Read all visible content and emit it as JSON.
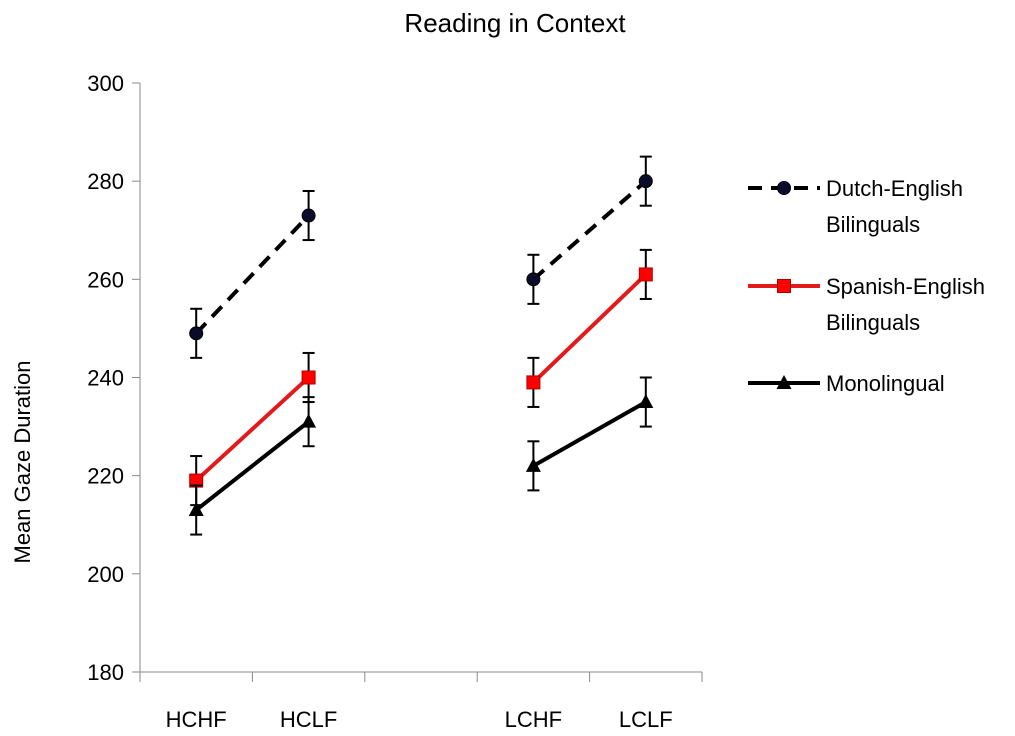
{
  "chart_data": {
    "type": "line",
    "title": "Reading in Context",
    "ylabel": "Mean Gaze Duration",
    "xlabel": "",
    "ylim": [
      180,
      300
    ],
    "yticks": [
      180,
      200,
      220,
      240,
      260,
      280,
      300
    ],
    "categories": [
      "HCHF",
      "HCLF",
      "",
      "LCHF",
      "LCLF"
    ],
    "grid": false,
    "legend": "right",
    "series": [
      {
        "name": "Dutch-English Bilinguals",
        "legend_lines": [
          "Dutch-English",
          "Bilinguals"
        ],
        "color": "#000000",
        "line_style": "dashed",
        "marker": "circle",
        "marker_color": "#0b0b2a",
        "points": [
          {
            "category": "HCHF",
            "y": 249,
            "err": 5
          },
          {
            "category": "HCLF",
            "y": 273,
            "err": 5
          },
          {
            "category": "LCHF",
            "y": 260,
            "err": 5
          },
          {
            "category": "LCLF",
            "y": 280,
            "err": 5
          }
        ]
      },
      {
        "name": "Spanish-English Bilinguals",
        "legend_lines": [
          "Spanish-English",
          "Bilinguals"
        ],
        "color": "#e31a1c",
        "line_style": "solid",
        "marker": "square",
        "marker_color": "#ff0000",
        "points": [
          {
            "category": "HCHF",
            "y": 219,
            "err": 5
          },
          {
            "category": "HCLF",
            "y": 240,
            "err": 5
          },
          {
            "category": "LCHF",
            "y": 239,
            "err": 5
          },
          {
            "category": "LCLF",
            "y": 261,
            "err": 5
          }
        ]
      },
      {
        "name": "Monolingual",
        "legend_lines": [
          "Monolingual"
        ],
        "color": "#000000",
        "line_style": "solid",
        "marker": "triangle",
        "marker_color": "#000000",
        "points": [
          {
            "category": "HCHF",
            "y": 213,
            "err": 5
          },
          {
            "category": "HCLF",
            "y": 231,
            "err": 5
          },
          {
            "category": "LCHF",
            "y": 222,
            "err": 5
          },
          {
            "category": "LCLF",
            "y": 235,
            "err": 5
          }
        ]
      }
    ]
  }
}
